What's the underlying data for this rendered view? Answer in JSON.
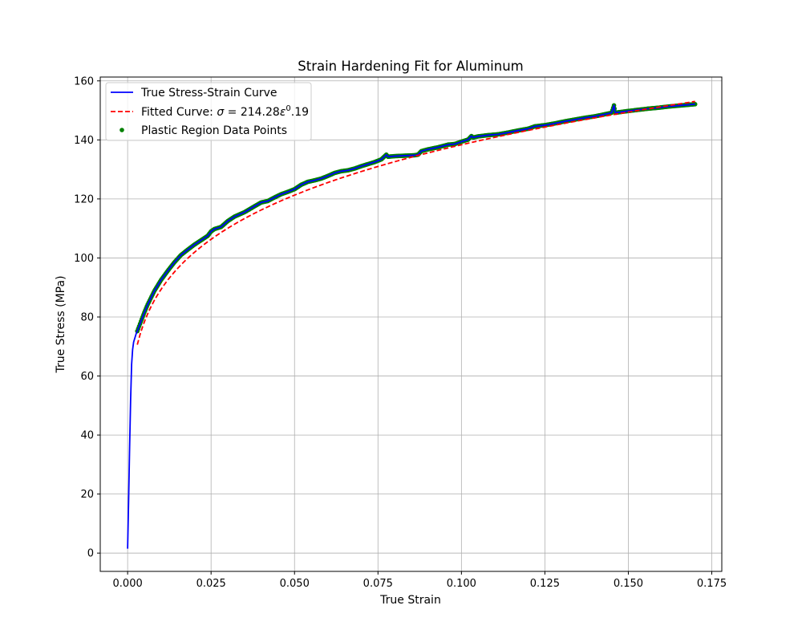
{
  "colors": {
    "true_curve": "#0000ff",
    "fitted_curve": "#ff0000",
    "plastic_points": "#008000",
    "grid": "#b0b0b0",
    "axes": "#000000",
    "legend_border": "#cccccc"
  },
  "chart_data": {
    "type": "line",
    "title": "Strain Hardening Fit for Aluminum",
    "xlabel": "True Strain",
    "ylabel": "True Stress (MPa)",
    "xlim": [
      -0.0082,
      0.178
    ],
    "ylim": [
      -6.2,
      161.3
    ],
    "xticks": [
      0.0,
      0.025,
      0.05,
      0.075,
      0.1,
      0.125,
      0.15,
      0.175
    ],
    "xtick_labels": [
      "0.000",
      "0.025",
      "0.050",
      "0.075",
      "0.100",
      "0.125",
      "0.150",
      "0.175"
    ],
    "yticks": [
      0,
      20,
      40,
      60,
      80,
      100,
      120,
      140,
      160
    ],
    "ytick_labels": [
      "0",
      "20",
      "40",
      "60",
      "80",
      "100",
      "120",
      "140",
      "160"
    ],
    "grid": true,
    "legend_position": "upper left",
    "legend": {
      "true_curve": "True Stress-Strain Curve",
      "fitted_prefix": "Fitted Curve: ",
      "fitted_sigma": "σ",
      "fitted_eq": " = 214.28",
      "fitted_eps": "ε",
      "fitted_exp": "0",
      "fitted_tail": ".19",
      "plastic_points": "Plastic Region Data Points"
    },
    "fit": {
      "K": 214.28,
      "n": 0.19,
      "x_start": 0.0029,
      "x_end": 0.17
    },
    "series": [
      {
        "name": "True Stress-Strain Curve",
        "kind": "line",
        "x": [
          0.0,
          0.0003,
          0.0006,
          0.0009,
          0.0012,
          0.0015,
          0.0018,
          0.0022,
          0.0026,
          0.003,
          0.004,
          0.005,
          0.006,
          0.008,
          0.01,
          0.012,
          0.014,
          0.016,
          0.018,
          0.02,
          0.022,
          0.024,
          0.025,
          0.026,
          0.028,
          0.03,
          0.032,
          0.035,
          0.038,
          0.04,
          0.042,
          0.044,
          0.046,
          0.048,
          0.05,
          0.052,
          0.054,
          0.056,
          0.058,
          0.06,
          0.062,
          0.064,
          0.066,
          0.068,
          0.07,
          0.072,
          0.074,
          0.076,
          0.0775,
          0.078,
          0.08,
          0.082,
          0.084,
          0.086,
          0.087,
          0.088,
          0.09,
          0.093,
          0.096,
          0.098,
          0.1,
          0.102,
          0.103,
          0.1035,
          0.105,
          0.108,
          0.111,
          0.114,
          0.117,
          0.12,
          0.122,
          0.125,
          0.128,
          0.131,
          0.134,
          0.137,
          0.14,
          0.143,
          0.145,
          0.1457,
          0.146,
          0.1463,
          0.1467,
          0.148,
          0.15,
          0.153,
          0.156,
          0.159,
          0.162,
          0.165,
          0.168,
          0.17
        ],
        "y": [
          1.5,
          18,
          36,
          52,
          64,
          69,
          71.5,
          73,
          74.5,
          75.5,
          78.5,
          81.5,
          84.2,
          88.8,
          92.5,
          95.6,
          98.5,
          101,
          102.8,
          104.5,
          106,
          107.5,
          109,
          109.8,
          110.5,
          112.5,
          114,
          115.5,
          117.5,
          118.8,
          119.3,
          120.5,
          121.6,
          122.4,
          123.3,
          124.8,
          125.8,
          126.3,
          126.9,
          127.8,
          128.8,
          129.4,
          129.7,
          130.3,
          131.1,
          131.8,
          132.5,
          133.4,
          135.0,
          134.3,
          134.5,
          134.6,
          134.7,
          134.8,
          135.0,
          136.2,
          136.8,
          137.5,
          138.4,
          138.6,
          139.4,
          140.1,
          141.3,
          140.8,
          141.2,
          141.6,
          141.9,
          142.5,
          143.2,
          143.8,
          144.6,
          145.0,
          145.6,
          146.3,
          146.9,
          147.5,
          148.0,
          148.7,
          149.2,
          151.7,
          149.5,
          149.2,
          149.3,
          149.5,
          149.8,
          150.2,
          150.6,
          150.9,
          151.3,
          151.6,
          151.9,
          152.1
        ]
      },
      {
        "name": "Plastic Region Data Points",
        "kind": "scatter",
        "x": [
          0.0029,
          0.004,
          0.005,
          0.006,
          0.008,
          0.01,
          0.012,
          0.014,
          0.016,
          0.018,
          0.02,
          0.022,
          0.024,
          0.025,
          0.026,
          0.028,
          0.03,
          0.032,
          0.035,
          0.038,
          0.04,
          0.042,
          0.044,
          0.046,
          0.048,
          0.05,
          0.052,
          0.054,
          0.056,
          0.058,
          0.06,
          0.062,
          0.064,
          0.066,
          0.068,
          0.07,
          0.072,
          0.074,
          0.076,
          0.0775,
          0.078,
          0.08,
          0.082,
          0.084,
          0.086,
          0.087,
          0.088,
          0.09,
          0.093,
          0.096,
          0.098,
          0.1,
          0.102,
          0.103,
          0.1035,
          0.105,
          0.108,
          0.111,
          0.114,
          0.117,
          0.12,
          0.122,
          0.125,
          0.128,
          0.131,
          0.134,
          0.137,
          0.14,
          0.143,
          0.145,
          0.1457,
          0.146,
          0.1463,
          0.1467,
          0.148,
          0.15,
          0.153,
          0.156,
          0.159,
          0.162,
          0.165,
          0.168,
          0.17
        ],
        "y": [
          75.2,
          78.5,
          81.5,
          84.2,
          88.8,
          92.5,
          95.6,
          98.5,
          101,
          102.8,
          104.5,
          106,
          107.5,
          109,
          109.8,
          110.5,
          112.5,
          114,
          115.5,
          117.5,
          118.8,
          119.3,
          120.5,
          121.6,
          122.4,
          123.3,
          124.8,
          125.8,
          126.3,
          126.9,
          127.8,
          128.8,
          129.4,
          129.7,
          130.3,
          131.1,
          131.8,
          132.5,
          133.4,
          135.0,
          134.3,
          134.5,
          134.6,
          134.7,
          134.8,
          135.0,
          136.2,
          136.8,
          137.5,
          138.4,
          138.6,
          139.4,
          140.1,
          141.3,
          140.8,
          141.2,
          141.6,
          141.9,
          142.5,
          143.2,
          143.8,
          144.6,
          145.0,
          145.6,
          146.3,
          146.9,
          147.5,
          148.0,
          148.7,
          149.2,
          151.7,
          149.5,
          149.2,
          149.3,
          149.5,
          149.8,
          150.2,
          150.6,
          150.9,
          151.3,
          151.6,
          151.9,
          152.1
        ]
      },
      {
        "name": "Fitted Curve",
        "kind": "line-dashed",
        "x": [],
        "y": []
      }
    ]
  }
}
